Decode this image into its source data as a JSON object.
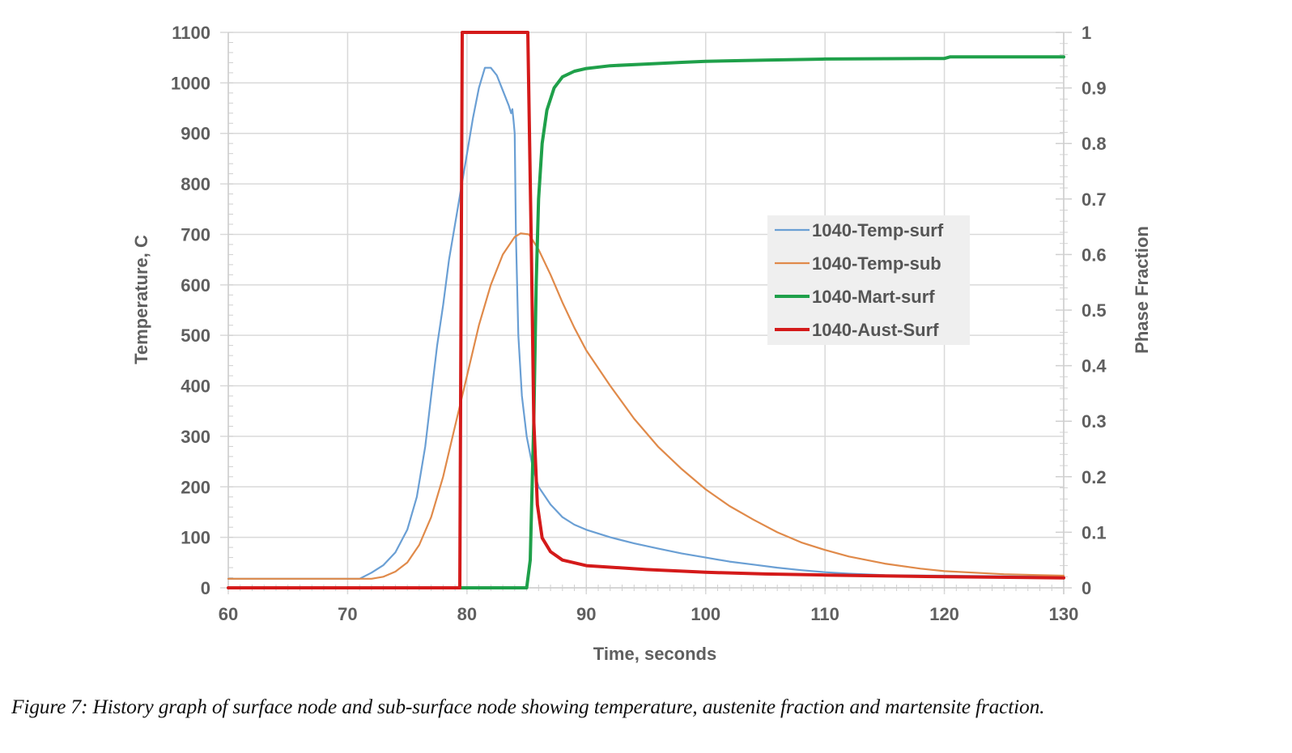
{
  "caption": "Figure 7:  History graph of surface node and sub-surface node showing temperature, austenite fraction and martensite fraction.",
  "chart_data": {
    "type": "line",
    "title": "",
    "xlabel": "Time, seconds",
    "ylabel": "Temperature, C",
    "y2label": "Phase Fraction",
    "xlim": [
      60,
      130
    ],
    "ylim": [
      0,
      1100
    ],
    "y2lim": [
      0,
      1
    ],
    "xticks": [
      60,
      70,
      80,
      90,
      100,
      110,
      120,
      130
    ],
    "yticks": [
      0,
      100,
      200,
      300,
      400,
      500,
      600,
      700,
      800,
      900,
      1000,
      1100
    ],
    "y2ticks": [
      "0",
      "0.1",
      "0.2",
      "0.3",
      "0.4",
      "0.5",
      "0.6",
      "0.7",
      "0.8",
      "0.9",
      "1"
    ],
    "grid": true,
    "legend_position": "center-right",
    "series": [
      {
        "name": "1040-Temp-surf",
        "axis": "left",
        "color": "#6a9fd4",
        "width": 2.2,
        "points": [
          [
            60,
            18
          ],
          [
            71,
            18
          ],
          [
            72,
            30
          ],
          [
            73,
            45
          ],
          [
            74,
            70
          ],
          [
            75,
            115
          ],
          [
            75.8,
            180
          ],
          [
            76.5,
            280
          ],
          [
            77,
            380
          ],
          [
            77.5,
            480
          ],
          [
            78,
            560
          ],
          [
            78.5,
            650
          ],
          [
            79,
            720
          ],
          [
            79.5,
            790
          ],
          [
            80,
            860
          ],
          [
            80.5,
            930
          ],
          [
            81,
            990
          ],
          [
            81.5,
            1030
          ],
          [
            82,
            1030
          ],
          [
            82.5,
            1015
          ],
          [
            83,
            985
          ],
          [
            83.5,
            955
          ],
          [
            83.7,
            940
          ],
          [
            83.8,
            948
          ],
          [
            83.9,
            925
          ],
          [
            84,
            900
          ],
          [
            84.1,
            700
          ],
          [
            84.3,
            500
          ],
          [
            84.6,
            380
          ],
          [
            85,
            300
          ],
          [
            85.5,
            240
          ],
          [
            86,
            200
          ],
          [
            87,
            165
          ],
          [
            88,
            140
          ],
          [
            89,
            125
          ],
          [
            90,
            115
          ],
          [
            92,
            100
          ],
          [
            94,
            88
          ],
          [
            96,
            78
          ],
          [
            98,
            68
          ],
          [
            100,
            60
          ],
          [
            102,
            52
          ],
          [
            104,
            46
          ],
          [
            106,
            40
          ],
          [
            108,
            35
          ],
          [
            110,
            31
          ],
          [
            112,
            28
          ],
          [
            115,
            25
          ],
          [
            120,
            24
          ],
          [
            125,
            23
          ],
          [
            130,
            22
          ]
        ]
      },
      {
        "name": "1040-Temp-sub",
        "axis": "left",
        "color": "#e08a4a",
        "width": 2.2,
        "points": [
          [
            60,
            18
          ],
          [
            72,
            18
          ],
          [
            73,
            22
          ],
          [
            74,
            32
          ],
          [
            75,
            50
          ],
          [
            76,
            85
          ],
          [
            77,
            140
          ],
          [
            78,
            220
          ],
          [
            79,
            320
          ],
          [
            80,
            420
          ],
          [
            81,
            520
          ],
          [
            82,
            600
          ],
          [
            83,
            660
          ],
          [
            84,
            695
          ],
          [
            84.5,
            702
          ],
          [
            85.2,
            700
          ],
          [
            86,
            670
          ],
          [
            87,
            620
          ],
          [
            88,
            565
          ],
          [
            89,
            515
          ],
          [
            90,
            470
          ],
          [
            92,
            400
          ],
          [
            94,
            335
          ],
          [
            96,
            280
          ],
          [
            98,
            235
          ],
          [
            100,
            195
          ],
          [
            102,
            162
          ],
          [
            104,
            135
          ],
          [
            106,
            110
          ],
          [
            108,
            90
          ],
          [
            110,
            75
          ],
          [
            112,
            62
          ],
          [
            115,
            48
          ],
          [
            118,
            38
          ],
          [
            120,
            33
          ],
          [
            125,
            27
          ],
          [
            130,
            24
          ]
        ]
      },
      {
        "name": "1040-Mart-surf",
        "axis": "right",
        "color": "#1fa04a",
        "width": 4,
        "points": [
          [
            79.5,
            0
          ],
          [
            85,
            0
          ],
          [
            85.3,
            0.05
          ],
          [
            85.6,
            0.3
          ],
          [
            85.8,
            0.55
          ],
          [
            86,
            0.7
          ],
          [
            86.3,
            0.8
          ],
          [
            86.7,
            0.86
          ],
          [
            87.3,
            0.9
          ],
          [
            88,
            0.92
          ],
          [
            89,
            0.93
          ],
          [
            90,
            0.935
          ],
          [
            92,
            0.94
          ],
          [
            95,
            0.943
          ],
          [
            98,
            0.946
          ],
          [
            100,
            0.948
          ],
          [
            105,
            0.95
          ],
          [
            110,
            0.952
          ],
          [
            120,
            0.953
          ],
          [
            120.5,
            0.956
          ],
          [
            130,
            0.956
          ]
        ]
      },
      {
        "name": "1040-Aust-Surf",
        "axis": "right",
        "color": "#d41a1a",
        "width": 4,
        "points": [
          [
            60,
            0
          ],
          [
            79.4,
            0
          ],
          [
            79.6,
            1
          ],
          [
            85.1,
            1
          ],
          [
            85.4,
            0.6
          ],
          [
            85.6,
            0.3
          ],
          [
            85.9,
            0.15
          ],
          [
            86.3,
            0.09
          ],
          [
            87,
            0.065
          ],
          [
            88,
            0.05
          ],
          [
            90,
            0.04
          ],
          [
            95,
            0.033
          ],
          [
            100,
            0.028
          ],
          [
            105,
            0.025
          ],
          [
            110,
            0.023
          ],
          [
            120,
            0.02
          ],
          [
            130,
            0.018
          ]
        ]
      }
    ]
  }
}
